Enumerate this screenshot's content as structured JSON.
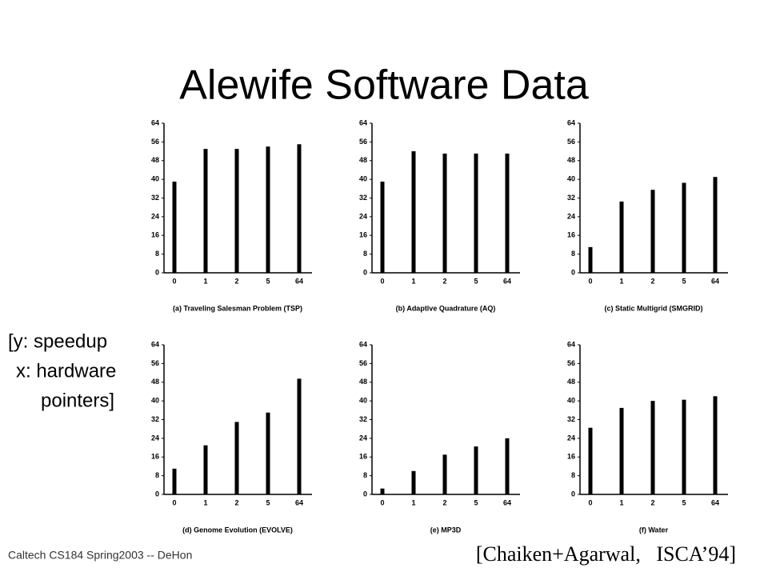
{
  "title": "Alewife Software Data",
  "note": [
    "[y: speedup",
    "x: hardware",
    "pointers]"
  ],
  "footer": "Caltech CS184 Spring2003 -- DeHon",
  "citation": "[Chaiken+Agarwal,   ISCA’94]",
  "chart_data": [
    {
      "type": "bar",
      "title": "(a) Traveling Salesman Problem (TSP)",
      "categories": [
        "0",
        "1",
        "2",
        "5",
        "64"
      ],
      "values": [
        39,
        53,
        53,
        54,
        55
      ],
      "color": "#000000",
      "ylim": [
        0,
        64
      ],
      "yticks": [
        0,
        8,
        16,
        24,
        32,
        40,
        48,
        56,
        64
      ]
    },
    {
      "type": "bar",
      "title": "(b) Adaptive Quadrature (AQ)",
      "categories": [
        "0",
        "1",
        "2",
        "5",
        "64"
      ],
      "values": [
        39,
        52,
        51,
        51,
        51
      ],
      "color": "#000000",
      "ylim": [
        0,
        64
      ],
      "yticks": [
        0,
        8,
        16,
        24,
        32,
        40,
        48,
        56,
        64
      ]
    },
    {
      "type": "bar",
      "title": "(c) Static Multigrid (SMGRID)",
      "categories": [
        "0",
        "1",
        "2",
        "5",
        "64"
      ],
      "values": [
        11,
        30.5,
        35.5,
        38.5,
        41
      ],
      "color": "#000000",
      "ylim": [
        0,
        64
      ],
      "yticks": [
        0,
        8,
        16,
        24,
        32,
        40,
        48,
        56,
        64
      ]
    },
    {
      "type": "bar",
      "title": "(d) Genome Evolution (EVOLVE)",
      "categories": [
        "0",
        "1",
        "2",
        "5",
        "64"
      ],
      "values": [
        11,
        21,
        31,
        35,
        49.5
      ],
      "color": "#000000",
      "ylim": [
        0,
        64
      ],
      "yticks": [
        0,
        8,
        16,
        24,
        32,
        40,
        48,
        56,
        64
      ]
    },
    {
      "type": "bar",
      "title": "(e) MP3D",
      "categories": [
        "0",
        "1",
        "2",
        "5",
        "64"
      ],
      "values": [
        2.5,
        10,
        17,
        20.5,
        24
      ],
      "color": "#000000",
      "ylim": [
        0,
        64
      ],
      "yticks": [
        0,
        8,
        16,
        24,
        32,
        40,
        48,
        56,
        64
      ]
    },
    {
      "type": "bar",
      "title": "(f) Water",
      "categories": [
        "0",
        "1",
        "2",
        "5",
        "64"
      ],
      "values": [
        28.5,
        37,
        40,
        40.5,
        42
      ],
      "color": "#000000",
      "ylim": [
        0,
        64
      ],
      "yticks": [
        0,
        8,
        16,
        24,
        32,
        40,
        48,
        56,
        64
      ]
    }
  ]
}
